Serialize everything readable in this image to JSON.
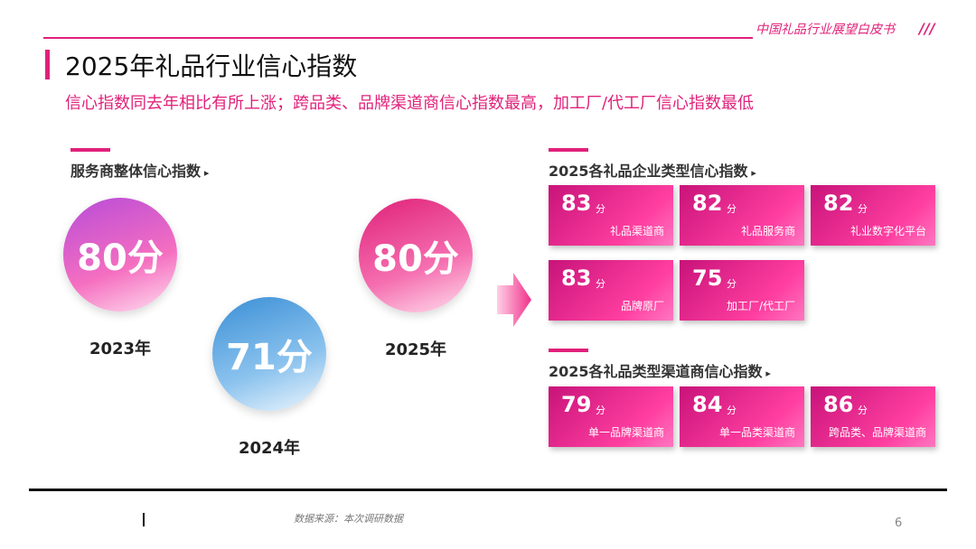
{
  "header": {
    "brand": "中国礼品行业展望白皮书",
    "title": "2025年礼品行业信心指数",
    "subtitle": "信心指数同去年相比有所上涨；跨品类、品牌渠道商信心指数最高，加工厂/代工厂信心指数最低"
  },
  "overall": {
    "title": "服务商整体信心指数",
    "circles": [
      {
        "score": "80分",
        "year": "2023年"
      },
      {
        "score": "71分",
        "year": "2024年"
      },
      {
        "score": "80分",
        "year": "2025年"
      }
    ]
  },
  "score_unit": "分",
  "enterprise": {
    "title": "2025各礼品企业类型信心指数",
    "cards": [
      {
        "score": "83",
        "label": "礼品渠道商"
      },
      {
        "score": "82",
        "label": "礼品服务商"
      },
      {
        "score": "82",
        "label": "礼业数字化平台"
      },
      {
        "score": "83",
        "label": "品牌原厂"
      },
      {
        "score": "75",
        "label": "加工厂/代工厂"
      }
    ]
  },
  "channel": {
    "title": "2025各礼品类型渠道商信心指数",
    "cards": [
      {
        "score": "79",
        "label": "单一品牌渠道商"
      },
      {
        "score": "84",
        "label": "单一品类渠道商"
      },
      {
        "score": "86",
        "label": "跨品类、品牌渠道商"
      }
    ]
  },
  "footer": {
    "source": "数据来源：本次调研数据",
    "page": "6"
  }
}
